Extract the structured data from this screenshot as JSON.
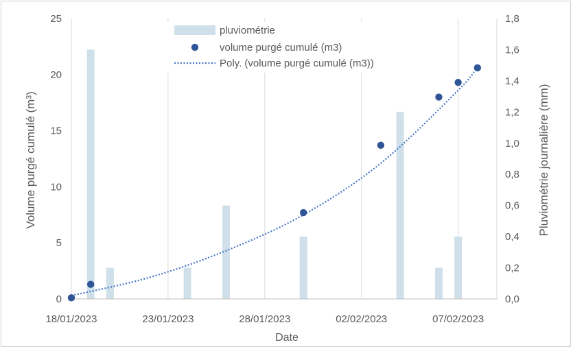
{
  "chart_data": {
    "type": "bar+scatter+line",
    "xlabel": "Date",
    "ylabel_left": "Volume purgé cumulé (m³)",
    "ylabel_right": "Pluviométrie journalière (mm)",
    "x_ticks": [
      "18/01/2023",
      "23/01/2023",
      "28/01/2023",
      "02/02/2023",
      "07/02/2023"
    ],
    "x_range": [
      "18/01/2023",
      "09/02/2023"
    ],
    "left_axis": {
      "range": [
        0,
        25
      ],
      "ticks": [
        "0",
        "5",
        "10",
        "15",
        "20",
        "25"
      ]
    },
    "right_axis": {
      "range": [
        0,
        1.8
      ],
      "ticks": [
        "0,0",
        "0,2",
        "0,4",
        "0,6",
        "0,8",
        "1,0",
        "1,2",
        "1,4",
        "1,6",
        "1,8"
      ]
    },
    "grid": "vertical",
    "legend_position": "top-center",
    "series": [
      {
        "name": "pluviométrie",
        "kind": "bar",
        "axis": "right",
        "color": "#cfe0ea",
        "points": [
          {
            "x": "19/01/2023",
            "y": 1.6
          },
          {
            "x": "20/01/2023",
            "y": 0.2
          },
          {
            "x": "24/01/2023",
            "y": 0.2
          },
          {
            "x": "26/01/2023",
            "y": 0.6
          },
          {
            "x": "30/01/2023",
            "y": 0.4
          },
          {
            "x": "04/02/2023",
            "y": 1.2
          },
          {
            "x": "06/02/2023",
            "y": 0.2
          },
          {
            "x": "07/02/2023",
            "y": 0.4
          }
        ]
      },
      {
        "name": "volume purgé cumulé (m3)",
        "kind": "scatter",
        "axis": "left",
        "color": "#2f5597",
        "points": [
          {
            "x": "18/01/2023",
            "y": 0.1
          },
          {
            "x": "19/01/2023",
            "y": 1.3
          },
          {
            "x": "30/01/2023",
            "y": 7.7
          },
          {
            "x": "03/02/2023",
            "y": 13.7
          },
          {
            "x": "06/02/2023",
            "y": 18.0
          },
          {
            "x": "07/02/2023",
            "y": 19.3
          },
          {
            "x": "08/02/2023",
            "y": 20.6
          }
        ]
      },
      {
        "name": "Poly. (volume purgé cumulé (m3))",
        "kind": "trendline",
        "axis": "left",
        "color": "#4472c4",
        "style": "dotted",
        "points": [
          {
            "x": "18/01/2023",
            "y": 0.3
          },
          {
            "x": "22/01/2023",
            "y": 1.9
          },
          {
            "x": "26/01/2023",
            "y": 4.3
          },
          {
            "x": "30/01/2023",
            "y": 7.5
          },
          {
            "x": "03/02/2023",
            "y": 12.1
          },
          {
            "x": "07/02/2023",
            "y": 18.6
          },
          {
            "x": "08/02/2023",
            "y": 20.7
          }
        ]
      }
    ]
  }
}
